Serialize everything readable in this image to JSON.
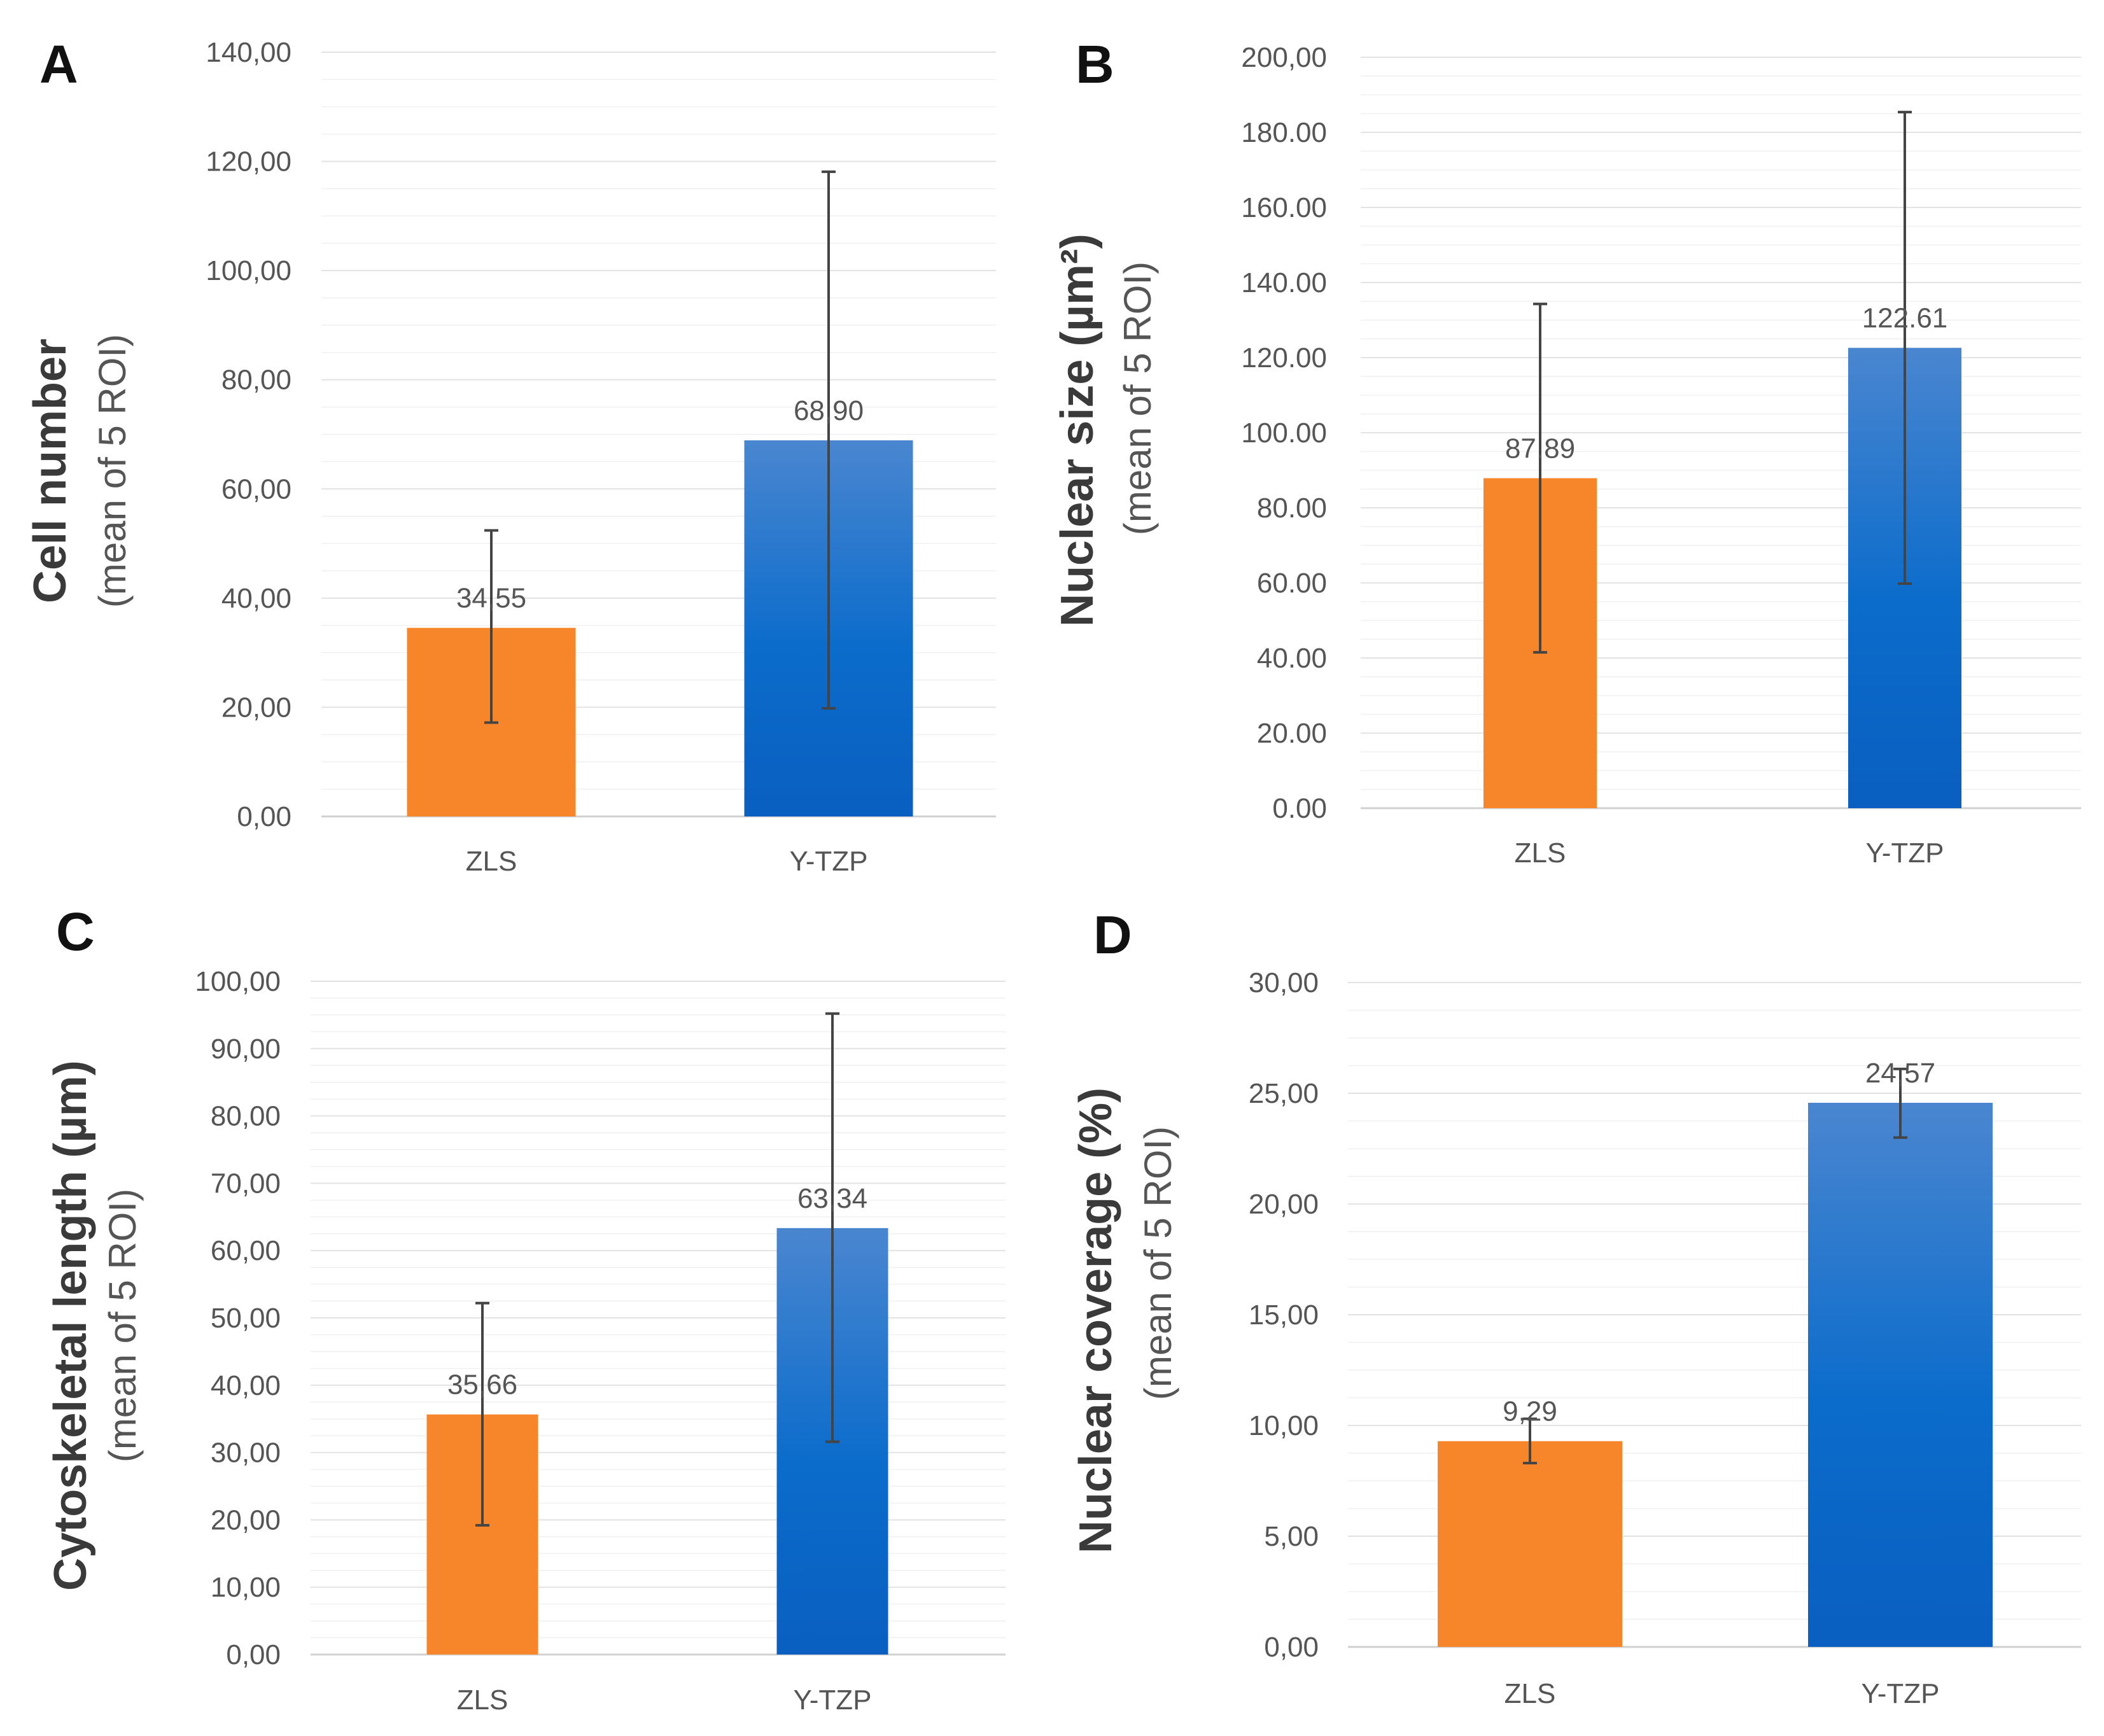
{
  "colors": {
    "zls": "#F7862A",
    "ytzp_top": "#4A86D0",
    "ytzp_bottom": "#0A5FC0"
  },
  "chart_data": [
    {
      "panel": "A",
      "type": "bar",
      "categories": [
        "ZLS",
        "Y-TZP"
      ],
      "values": [
        34.55,
        68.9
      ],
      "value_labels": [
        "34,55",
        "68,90"
      ],
      "error_low": [
        17.2,
        19.8
      ],
      "error_high": [
        52.4,
        118.1
      ],
      "ylabel": "Cell number",
      "ylabel_sub": "(mean of 5 ROI)",
      "ylim": [
        0,
        140
      ],
      "yticks": [
        0,
        20,
        40,
        60,
        80,
        100,
        120,
        140
      ],
      "ytick_labels": [
        "0,00",
        "20,00",
        "40,00",
        "60,00",
        "80,00",
        "100,00",
        "120,00",
        "140,00"
      ],
      "minor_per_major": 4
    },
    {
      "panel": "B",
      "type": "bar",
      "categories": [
        "ZLS",
        "Y-TZP"
      ],
      "values": [
        87.89,
        122.61
      ],
      "value_labels": [
        "87.89",
        "122.61"
      ],
      "error_low": [
        41.5,
        59.8
      ],
      "error_high": [
        134.3,
        185.4
      ],
      "ylabel": "Nuclear size (µm²)",
      "ylabel_sub": "(mean of 5 ROI)",
      "ylim": [
        0,
        200
      ],
      "yticks": [
        0,
        20,
        40,
        60,
        80,
        100,
        120,
        140,
        160,
        180,
        200
      ],
      "ytick_labels": [
        "0.00",
        "20.00",
        "40.00",
        "60.00",
        "80.00",
        "100.00",
        "120.00",
        "140.00",
        "160.00",
        "180.00",
        "200,00"
      ],
      "minor_per_major": 4
    },
    {
      "panel": "C",
      "type": "bar",
      "categories": [
        "ZLS",
        "Y-TZP"
      ],
      "values": [
        35.66,
        63.34
      ],
      "value_labels": [
        "35,66",
        "63,34"
      ],
      "error_low": [
        19.2,
        31.6
      ],
      "error_high": [
        52.2,
        95.2
      ],
      "ylabel": "Cytoskeletal  length (µm)",
      "ylabel_sub": "(mean of 5 ROI)",
      "ylim": [
        0,
        100
      ],
      "yticks": [
        0,
        10,
        20,
        30,
        40,
        50,
        60,
        70,
        80,
        90,
        100
      ],
      "ytick_labels": [
        "0,00",
        "10,00",
        "20,00",
        "30,00",
        "40,00",
        "50,00",
        "60,00",
        "70,00",
        "80,00",
        "90,00",
        "100,00"
      ],
      "minor_per_major": 4
    },
    {
      "panel": "D",
      "type": "bar",
      "categories": [
        "ZLS",
        "Y-TZP"
      ],
      "values": [
        9.29,
        24.57
      ],
      "value_labels": [
        "9,29",
        "24,57"
      ],
      "error_low": [
        8.3,
        23.0
      ],
      "error_high": [
        10.3,
        26.1
      ],
      "ylabel": "Nuclear coverage (%)",
      "ylabel_sub": "(mean of 5 ROI)",
      "ylim": [
        0,
        30
      ],
      "yticks": [
        0,
        5,
        10,
        15,
        20,
        25,
        30
      ],
      "ytick_labels": [
        "0,00",
        "5,00",
        "10,00",
        "15,00",
        "20,00",
        "25,00",
        "30,00"
      ],
      "minor_per_major": 4
    }
  ]
}
